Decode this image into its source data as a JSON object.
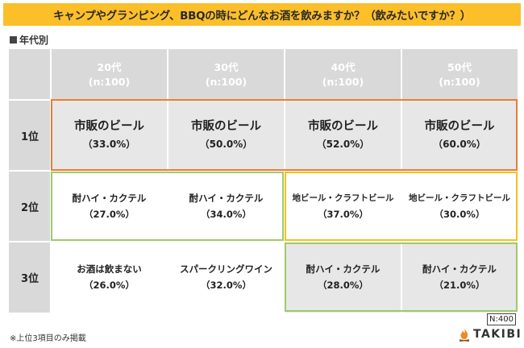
{
  "title": "キャンプやグランピング、BBQの時にどんなお酒を飲みますか？（飲みたいですか？）",
  "section_label": "年代別",
  "columns": [
    {
      "label": "20代",
      "n": "(n:100)"
    },
    {
      "label": "30代",
      "n": "(n:100)"
    },
    {
      "label": "40代",
      "n": "(n:100)"
    },
    {
      "label": "50代",
      "n": "(n:100)"
    }
  ],
  "rows": [
    {
      "rank": "1位",
      "cells": [
        {
          "name": "市販のビール",
          "pct": "（33.0%）"
        },
        {
          "name": "市販のビール",
          "pct": "（50.0%）"
        },
        {
          "name": "市販のビール",
          "pct": "（52.0%）"
        },
        {
          "name": "市販のビール",
          "pct": "（60.0%）"
        }
      ]
    },
    {
      "rank": "2位",
      "cells": [
        {
          "name": "酎ハイ・カクテル",
          "pct": "（27.0%）"
        },
        {
          "name": "酎ハイ・カクテル",
          "pct": "（34.0%）"
        },
        {
          "name": "地ビール・クラフトビール",
          "pct": "（37.0%）"
        },
        {
          "name": "地ビール・クラフトビール",
          "pct": "（30.0%）"
        }
      ]
    },
    {
      "rank": "3位",
      "cells": [
        {
          "name": "お酒は飲まない",
          "pct": "（26.0%）"
        },
        {
          "name": "スパークリングワイン",
          "pct": "（32.0%）"
        },
        {
          "name": "酎ハイ・カクテル",
          "pct": "（28.0%）"
        },
        {
          "name": "酎ハイ・カクテル",
          "pct": "（21.0%）"
        }
      ]
    }
  ],
  "footnote": "※上位3項目のみ掲載",
  "sample_size": "N:400",
  "brand": "TAKIBI",
  "colors": {
    "title_bg": "#fcbf2a",
    "header_bg": "#d9d9d9",
    "row1_bg": "#e7e7e7",
    "highlight_beer": "#ed7d31",
    "highlight_chuhai": "#9ccb6b",
    "highlight_craft": "#f5c11e",
    "logo_flame": "#f08a24"
  },
  "chart_data": {
    "type": "table",
    "title": "キャンプやグランピング、BBQの時にどんなお酒を飲みますか？（飲みたいですか？）",
    "columns": [
      "20代",
      "30代",
      "40代",
      "50代"
    ],
    "rank_labels": [
      "1位",
      "2位",
      "3位"
    ],
    "rankings": {
      "20代": [
        [
          "市販のビール",
          33.0
        ],
        [
          "酎ハイ・カクテル",
          27.0
        ],
        [
          "お酒は飲まない",
          26.0
        ]
      ],
      "30代": [
        [
          "市販のビール",
          50.0
        ],
        [
          "酎ハイ・カクテル",
          34.0
        ],
        [
          "スパークリングワイン",
          32.0
        ]
      ],
      "40代": [
        [
          "市販のビール",
          52.0
        ],
        [
          "地ビール・クラフトビール",
          37.0
        ],
        [
          "酎ハイ・カクテル",
          28.0
        ]
      ],
      "50代": [
        [
          "市販のビール",
          60.0
        ],
        [
          "地ビール・クラフトビール",
          30.0
        ],
        [
          "酎ハイ・カクテル",
          21.0
        ]
      ]
    }
  }
}
